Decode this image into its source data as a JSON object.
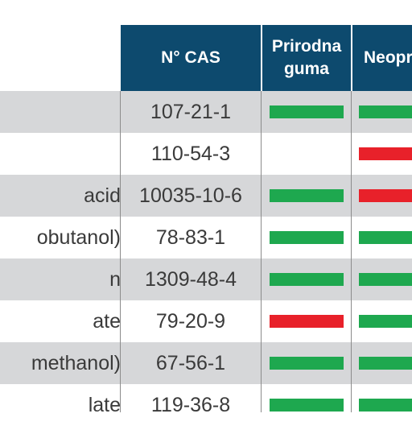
{
  "header": {
    "cas_label": "N° CAS",
    "natural_rubber_line1": "Prirodna",
    "natural_rubber_line2": "guma",
    "neoprene_label": "Neopre"
  },
  "colors": {
    "header_bg": "#0d4a6e",
    "good": "#1ea84f",
    "bad": "#e8212a",
    "row_shaded": "#d6d7d9"
  },
  "rows": [
    {
      "name": "",
      "cas": "107-21-1",
      "natural_rubber": "good",
      "neoprene": "good"
    },
    {
      "name": "",
      "cas": "110-54-3",
      "natural_rubber": "none",
      "neoprene": "bad"
    },
    {
      "name": " acid",
      "cas": "10035-10-6",
      "natural_rubber": "good",
      "neoprene": "bad"
    },
    {
      "name": "obutanol)",
      "cas": "78-83-1",
      "natural_rubber": "good",
      "neoprene": "good"
    },
    {
      "name": "n",
      "cas": "1309-48-4",
      "natural_rubber": "good",
      "neoprene": "good"
    },
    {
      "name": "ate",
      "cas": "79-20-9",
      "natural_rubber": "bad",
      "neoprene": "good"
    },
    {
      "name": "methanol)",
      "cas": "67-56-1",
      "natural_rubber": "good",
      "neoprene": "good"
    },
    {
      "name": "late",
      "cas": "119-36-8",
      "natural_rubber": "good",
      "neoprene": "good"
    }
  ]
}
